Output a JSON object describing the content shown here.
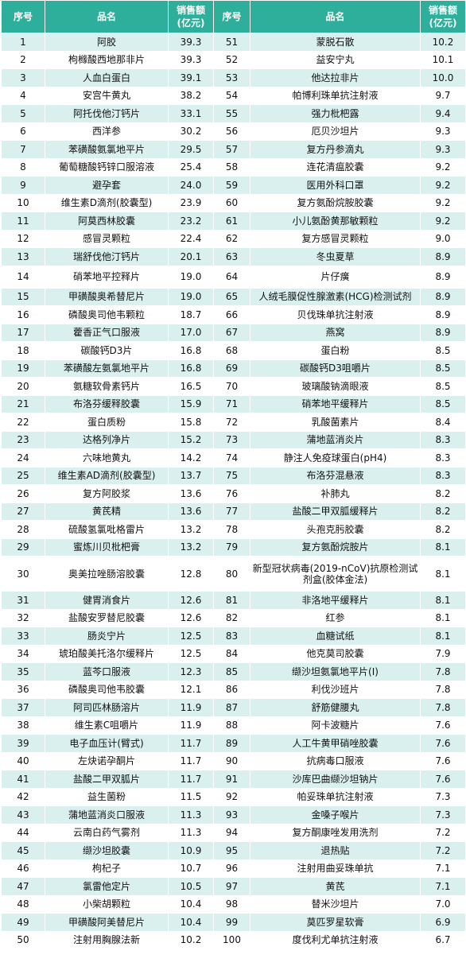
{
  "header": {
    "no": "序号",
    "name": "品名",
    "sales_line1": "销售额",
    "sales_line2": "(亿元)"
  },
  "left": [
    {
      "no": "1",
      "name": "阿胶",
      "sales": "39.3"
    },
    {
      "no": "2",
      "name": "枸橼酸西地那非片",
      "sales": "39.3"
    },
    {
      "no": "3",
      "name": "人血白蛋白",
      "sales": "39.1"
    },
    {
      "no": "4",
      "name": "安宫牛黄丸",
      "sales": "38.2"
    },
    {
      "no": "5",
      "name": "阿托伐他汀钙片",
      "sales": "33.1"
    },
    {
      "no": "6",
      "name": "西洋参",
      "sales": "30.2"
    },
    {
      "no": "7",
      "name": "苯磺酸氨氯地平片",
      "sales": "29.5"
    },
    {
      "no": "8",
      "name": "葡萄糖酸钙锌口服溶液",
      "sales": "25.4"
    },
    {
      "no": "9",
      "name": "避孕套",
      "sales": "24.0"
    },
    {
      "no": "10",
      "name": "维生素D滴剂(胶囊型)",
      "sales": "23.9"
    },
    {
      "no": "11",
      "name": "阿莫西林胶囊",
      "sales": "23.2"
    },
    {
      "no": "12",
      "name": "感冒灵颗粒",
      "sales": "22.4"
    },
    {
      "no": "13",
      "name": "瑞舒伐他汀钙片",
      "sales": "20.1"
    },
    {
      "no": "14",
      "name": "硝苯地平控释片",
      "sales": "19.0"
    },
    {
      "no": "15",
      "name": "甲磺酸奥希替尼片",
      "sales": "19.0"
    },
    {
      "no": "16",
      "name": "磷酸奥司他韦颗粒",
      "sales": "18.7"
    },
    {
      "no": "17",
      "name": "藿香正气口服液",
      "sales": "17.0"
    },
    {
      "no": "18",
      "name": "碳酸钙D3片",
      "sales": "16.8"
    },
    {
      "no": "19",
      "name": "苯磺酸左氨氯地平片",
      "sales": "16.8"
    },
    {
      "no": "20",
      "name": "氨糖软骨素钙片",
      "sales": "16.5"
    },
    {
      "no": "21",
      "name": "布洛芬缓释胶囊",
      "sales": "15.9"
    },
    {
      "no": "22",
      "name": "蛋白质粉",
      "sales": "15.8"
    },
    {
      "no": "23",
      "name": "达格列净片",
      "sales": "15.2"
    },
    {
      "no": "24",
      "name": "六味地黄丸",
      "sales": "14.2"
    },
    {
      "no": "25",
      "name": "维生素AD滴剂(胶囊型)",
      "sales": "13.7"
    },
    {
      "no": "26",
      "name": "复方阿胶浆",
      "sales": "13.6"
    },
    {
      "no": "27",
      "name": "黄芪精",
      "sales": "13.6"
    },
    {
      "no": "28",
      "name": "硫酸氢氯吡格雷片",
      "sales": "13.2"
    },
    {
      "no": "29",
      "name": "蜜炼川贝枇杷膏",
      "sales": "13.2"
    },
    {
      "no": "30",
      "name": "奥美拉唑肠溶胶囊",
      "sales": "12.8"
    },
    {
      "no": "31",
      "name": "健胃消食片",
      "sales": "12.6"
    },
    {
      "no": "32",
      "name": "盐酸安罗替尼胶囊",
      "sales": "12.6"
    },
    {
      "no": "33",
      "name": "肠炎宁片",
      "sales": "12.5"
    },
    {
      "no": "34",
      "name": "琥珀酸美托洛尔缓释片",
      "sales": "12.5"
    },
    {
      "no": "35",
      "name": "蓝芩口服液",
      "sales": "12.3"
    },
    {
      "no": "36",
      "name": "磷酸奥司他韦胶囊",
      "sales": "12.1"
    },
    {
      "no": "37",
      "name": "阿司匹林肠溶片",
      "sales": "11.9"
    },
    {
      "no": "38",
      "name": "维生素C咀嚼片",
      "sales": "11.9"
    },
    {
      "no": "39",
      "name": "电子血压计(臂式)",
      "sales": "11.7"
    },
    {
      "no": "40",
      "name": "左炔诺孕酮片",
      "sales": "11.7"
    },
    {
      "no": "41",
      "name": "盐酸二甲双胍片",
      "sales": "11.7"
    },
    {
      "no": "42",
      "name": "益生菌粉",
      "sales": "11.5"
    },
    {
      "no": "43",
      "name": "蒲地蓝消炎口服液",
      "sales": "11.3"
    },
    {
      "no": "44",
      "name": "云南白药气雾剂",
      "sales": "11.3"
    },
    {
      "no": "45",
      "name": "缬沙坦胶囊",
      "sales": "10.9"
    },
    {
      "no": "46",
      "name": "枸杞子",
      "sales": "10.7"
    },
    {
      "no": "47",
      "name": "氯雷他定片",
      "sales": "10.5"
    },
    {
      "no": "48",
      "name": "小柴胡颗粒",
      "sales": "10.4"
    },
    {
      "no": "49",
      "name": "甲磺酸阿美替尼片",
      "sales": "10.4"
    },
    {
      "no": "50",
      "name": "注射用胸腺法新",
      "sales": "10.2"
    }
  ],
  "right": [
    {
      "no": "51",
      "name": "蒙脱石散",
      "sales": "10.2"
    },
    {
      "no": "52",
      "name": "益安宁丸",
      "sales": "10.1"
    },
    {
      "no": "53",
      "name": "他达拉非片",
      "sales": "10.0"
    },
    {
      "no": "54",
      "name": "帕博利珠单抗注射液",
      "sales": "9.7"
    },
    {
      "no": "55",
      "name": "强力枇杷露",
      "sales": "9.4"
    },
    {
      "no": "56",
      "name": "厄贝沙坦片",
      "sales": "9.3"
    },
    {
      "no": "57",
      "name": "复方丹参滴丸",
      "sales": "9.3"
    },
    {
      "no": "58",
      "name": "连花清瘟胶囊",
      "sales": "9.2"
    },
    {
      "no": "59",
      "name": "医用外科口罩",
      "sales": "9.2"
    },
    {
      "no": "60",
      "name": "复方氨酚烷胺胶囊",
      "sales": "9.2"
    },
    {
      "no": "61",
      "name": "小儿氨酚黄那敏颗粒",
      "sales": "9.2"
    },
    {
      "no": "62",
      "name": "复方感冒灵颗粒",
      "sales": "9.0"
    },
    {
      "no": "63",
      "name": "冬虫夏草",
      "sales": "8.9"
    },
    {
      "no": "64",
      "name": "片仔癀",
      "sales": "8.9"
    },
    {
      "no": "65",
      "name": "人绒毛膜促性腺激素(HCG)检测试剂",
      "sales": "8.9"
    },
    {
      "no": "66",
      "name": "贝伐珠单抗注射液",
      "sales": "8.9"
    },
    {
      "no": "67",
      "name": "燕窝",
      "sales": "8.9"
    },
    {
      "no": "68",
      "name": "蛋白粉",
      "sales": "8.5"
    },
    {
      "no": "69",
      "name": "碳酸钙D3咀嚼片",
      "sales": "8.5"
    },
    {
      "no": "70",
      "name": "玻璃酸钠滴眼液",
      "sales": "8.5"
    },
    {
      "no": "71",
      "name": "硝苯地平缓释片",
      "sales": "8.5"
    },
    {
      "no": "72",
      "name": "乳酸菌素片",
      "sales": "8.4"
    },
    {
      "no": "73",
      "name": "蒲地蓝消炎片",
      "sales": "8.3"
    },
    {
      "no": "74",
      "name": "静注人免疫球蛋白(pH4)",
      "sales": "8.3"
    },
    {
      "no": "75",
      "name": "布洛芬混悬液",
      "sales": "8.3"
    },
    {
      "no": "76",
      "name": "补肺丸",
      "sales": "8.2"
    },
    {
      "no": "77",
      "name": "盐酸二甲双胍缓释片",
      "sales": "8.2"
    },
    {
      "no": "78",
      "name": "头孢克肟胶囊",
      "sales": "8.2"
    },
    {
      "no": "79",
      "name": "复方氨酚烷胺片",
      "sales": "8.1"
    },
    {
      "no": "80",
      "name": "新型冠状病毒(2019-nCoV)抗原检测试剂盒(胶体金法)",
      "sales": "8.1"
    },
    {
      "no": "81",
      "name": "非洛地平缓释片",
      "sales": "8.1"
    },
    {
      "no": "82",
      "name": "红参",
      "sales": "8.1"
    },
    {
      "no": "83",
      "name": "血糖试纸",
      "sales": "8.1"
    },
    {
      "no": "84",
      "name": "他克莫司胶囊",
      "sales": "7.9"
    },
    {
      "no": "85",
      "name": "缬沙坦氨氯地平片(Ⅰ)",
      "sales": "7.8"
    },
    {
      "no": "86",
      "name": "利伐沙班片",
      "sales": "7.8"
    },
    {
      "no": "87",
      "name": "舒筋健腰丸",
      "sales": "7.8"
    },
    {
      "no": "88",
      "name": "阿卡波糖片",
      "sales": "7.6"
    },
    {
      "no": "89",
      "name": "人工牛黄甲硝唑胶囊",
      "sales": "7.6"
    },
    {
      "no": "90",
      "name": "抗病毒口服液",
      "sales": "7.6"
    },
    {
      "no": "91",
      "name": "沙库巴曲缬沙坦钠片",
      "sales": "7.6"
    },
    {
      "no": "92",
      "name": "帕妥珠单抗注射液",
      "sales": "7.3"
    },
    {
      "no": "93",
      "name": "金嗓子喉片",
      "sales": "7.3"
    },
    {
      "no": "94",
      "name": "复方酮康唑发用洗剂",
      "sales": "7.2"
    },
    {
      "no": "95",
      "name": "退热贴",
      "sales": "7.2"
    },
    {
      "no": "96",
      "name": "注射用曲妥珠单抗",
      "sales": "7.1"
    },
    {
      "no": "97",
      "name": "黄芪",
      "sales": "7.1"
    },
    {
      "no": "98",
      "name": "替米沙坦片",
      "sales": "7.0"
    },
    {
      "no": "99",
      "name": "莫匹罗星软膏",
      "sales": "6.9"
    },
    {
      "no": "100",
      "name": "度伐利尤单抗注射液",
      "sales": "6.7"
    }
  ]
}
